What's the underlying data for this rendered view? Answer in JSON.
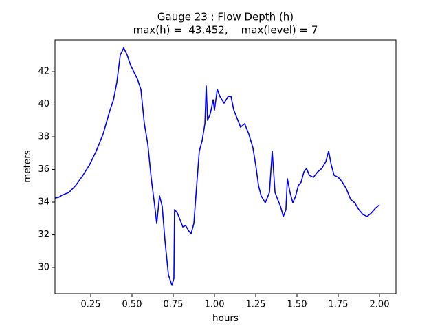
{
  "chart_data": {
    "type": "line",
    "title": "Gauge 23 : Flow Depth (h)",
    "subtitle": "max(h) =  43.452,    max(level) = 7",
    "x_label": "hours",
    "y_label": "meters",
    "xlim": [
      0.0333,
      2.1
    ],
    "ylim": [
      28.4,
      43.94
    ],
    "xticks": [
      0.25,
      {
        "value": 0.5,
        "label": "0.50"
      },
      0.75,
      {
        "value": 1.0,
        "label": "1.00"
      },
      1.25,
      {
        "value": 1.5,
        "label": "1.50"
      },
      1.75,
      {
        "value": 2.0,
        "label": "2.00"
      }
    ],
    "yticks": [
      30,
      32,
      34,
      36,
      38,
      40,
      42
    ],
    "grid": false,
    "series": [
      {
        "color": "#0000ff",
        "x": [
          0.033,
          0.054,
          0.075,
          0.117,
          0.158,
          0.2,
          0.242,
          0.283,
          0.325,
          0.367,
          0.388,
          0.408,
          0.429,
          0.45,
          0.471,
          0.492,
          0.533,
          0.554,
          0.575,
          0.596,
          0.617,
          0.638,
          0.65,
          0.667,
          0.683,
          0.7,
          0.721,
          0.742,
          0.754,
          0.758,
          0.775,
          0.792,
          0.808,
          0.825,
          0.842,
          0.858,
          0.875,
          0.892,
          0.908,
          0.925,
          0.942,
          0.95,
          0.958,
          0.975,
          0.992,
          1.0,
          1.017,
          1.033,
          1.058,
          1.083,
          1.1,
          1.117,
          1.142,
          1.158,
          1.183,
          1.208,
          1.233,
          1.25,
          1.267,
          1.283,
          1.308,
          1.333,
          1.35,
          1.367,
          1.383,
          1.4,
          1.417,
          1.433,
          1.442,
          1.458,
          1.475,
          1.492,
          1.508,
          1.525,
          1.542,
          1.558,
          1.575,
          1.6,
          1.625,
          1.65,
          1.675,
          1.692,
          1.708,
          1.725,
          1.75,
          1.775,
          1.8,
          1.825,
          1.85,
          1.875,
          1.9,
          1.925,
          1.95,
          1.975,
          2.0
        ],
        "values": [
          34.25,
          34.29,
          34.42,
          34.59,
          35.01,
          35.6,
          36.27,
          37.12,
          38.17,
          39.64,
          40.27,
          41.33,
          43.01,
          43.45,
          43.01,
          42.38,
          41.54,
          40.91,
          38.8,
          37.54,
          35.43,
          33.75,
          32.69,
          34.38,
          33.75,
          31.64,
          29.54,
          28.91,
          29.33,
          33.54,
          33.33,
          32.91,
          32.48,
          32.57,
          32.27,
          32.06,
          32.69,
          35.01,
          37.12,
          37.75,
          38.8,
          41.12,
          39.01,
          39.43,
          40.27,
          39.64,
          40.91,
          40.48,
          40.06,
          40.48,
          40.48,
          39.64,
          39.01,
          38.59,
          38.8,
          38.17,
          37.33,
          36.27,
          35.01,
          34.38,
          33.96,
          34.59,
          37.12,
          34.59,
          34.17,
          33.75,
          33.12,
          33.54,
          35.43,
          34.59,
          33.96,
          34.38,
          35.01,
          35.22,
          35.85,
          36.06,
          35.64,
          35.52,
          35.85,
          36.06,
          36.48,
          37.12,
          36.27,
          35.64,
          35.52,
          35.22,
          34.8,
          34.17,
          33.96,
          33.54,
          33.24,
          33.12,
          33.33,
          33.62,
          33.83
        ]
      }
    ]
  }
}
